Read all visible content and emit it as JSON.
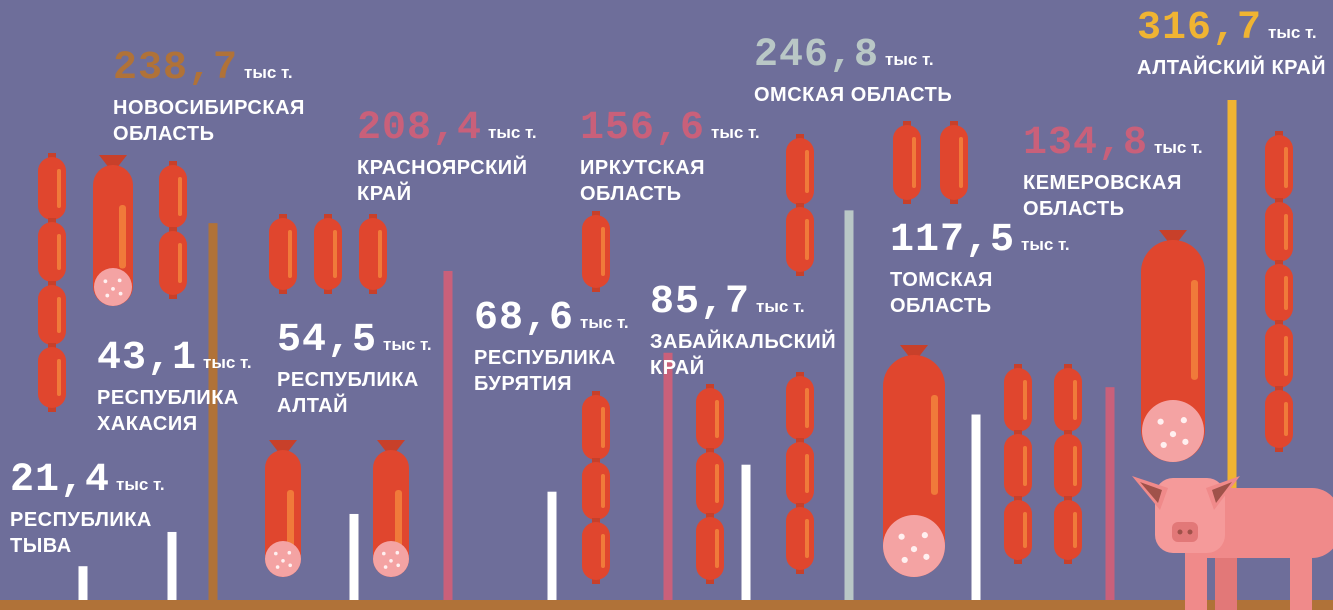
{
  "chart_data": {
    "type": "bar",
    "unit": "тыс т.",
    "categories": [
      "РЕСПУБЛИКА ТЫВА",
      "РЕСПУБЛИКА ХАКАСИЯ",
      "НОВОСИБИРСКАЯ ОБЛАСТЬ",
      "РЕСПУБЛИКА АЛТАЙ",
      "КРАСНОЯРСКИЙ КРАЙ",
      "РЕСПУБЛИКА БУРЯТИЯ",
      "ИРКУТСКАЯ ОБЛАСТЬ",
      "ЗАБАЙКАЛЬСКИЙ КРАЙ",
      "ОМСКАЯ ОБЛАСТЬ",
      "ТОМСКАЯ ОБЛАСТЬ",
      "КЕМЕРОВСКАЯ ОБЛАСТЬ",
      "АЛТАЙСКИЙ КРАЙ"
    ],
    "values": [
      21.4,
      43.1,
      238.7,
      54.5,
      208.4,
      68.6,
      156.6,
      85.7,
      246.8,
      117.5,
      134.8,
      316.7
    ],
    "value_labels": [
      "21,4",
      "43,1",
      "238,7",
      "54,5",
      "208,4",
      "68,6",
      "156,6",
      "85,7",
      "246,8",
      "117,5",
      "134,8",
      "316,7"
    ],
    "colors": [
      "#ffffff",
      "#ffffff",
      "#b07238",
      "#ffffff",
      "#c9607a",
      "#ffffff",
      "#c9607a",
      "#ffffff",
      "#b9c7c6",
      "#ffffff",
      "#c9607a",
      "#f0b432"
    ]
  }
}
